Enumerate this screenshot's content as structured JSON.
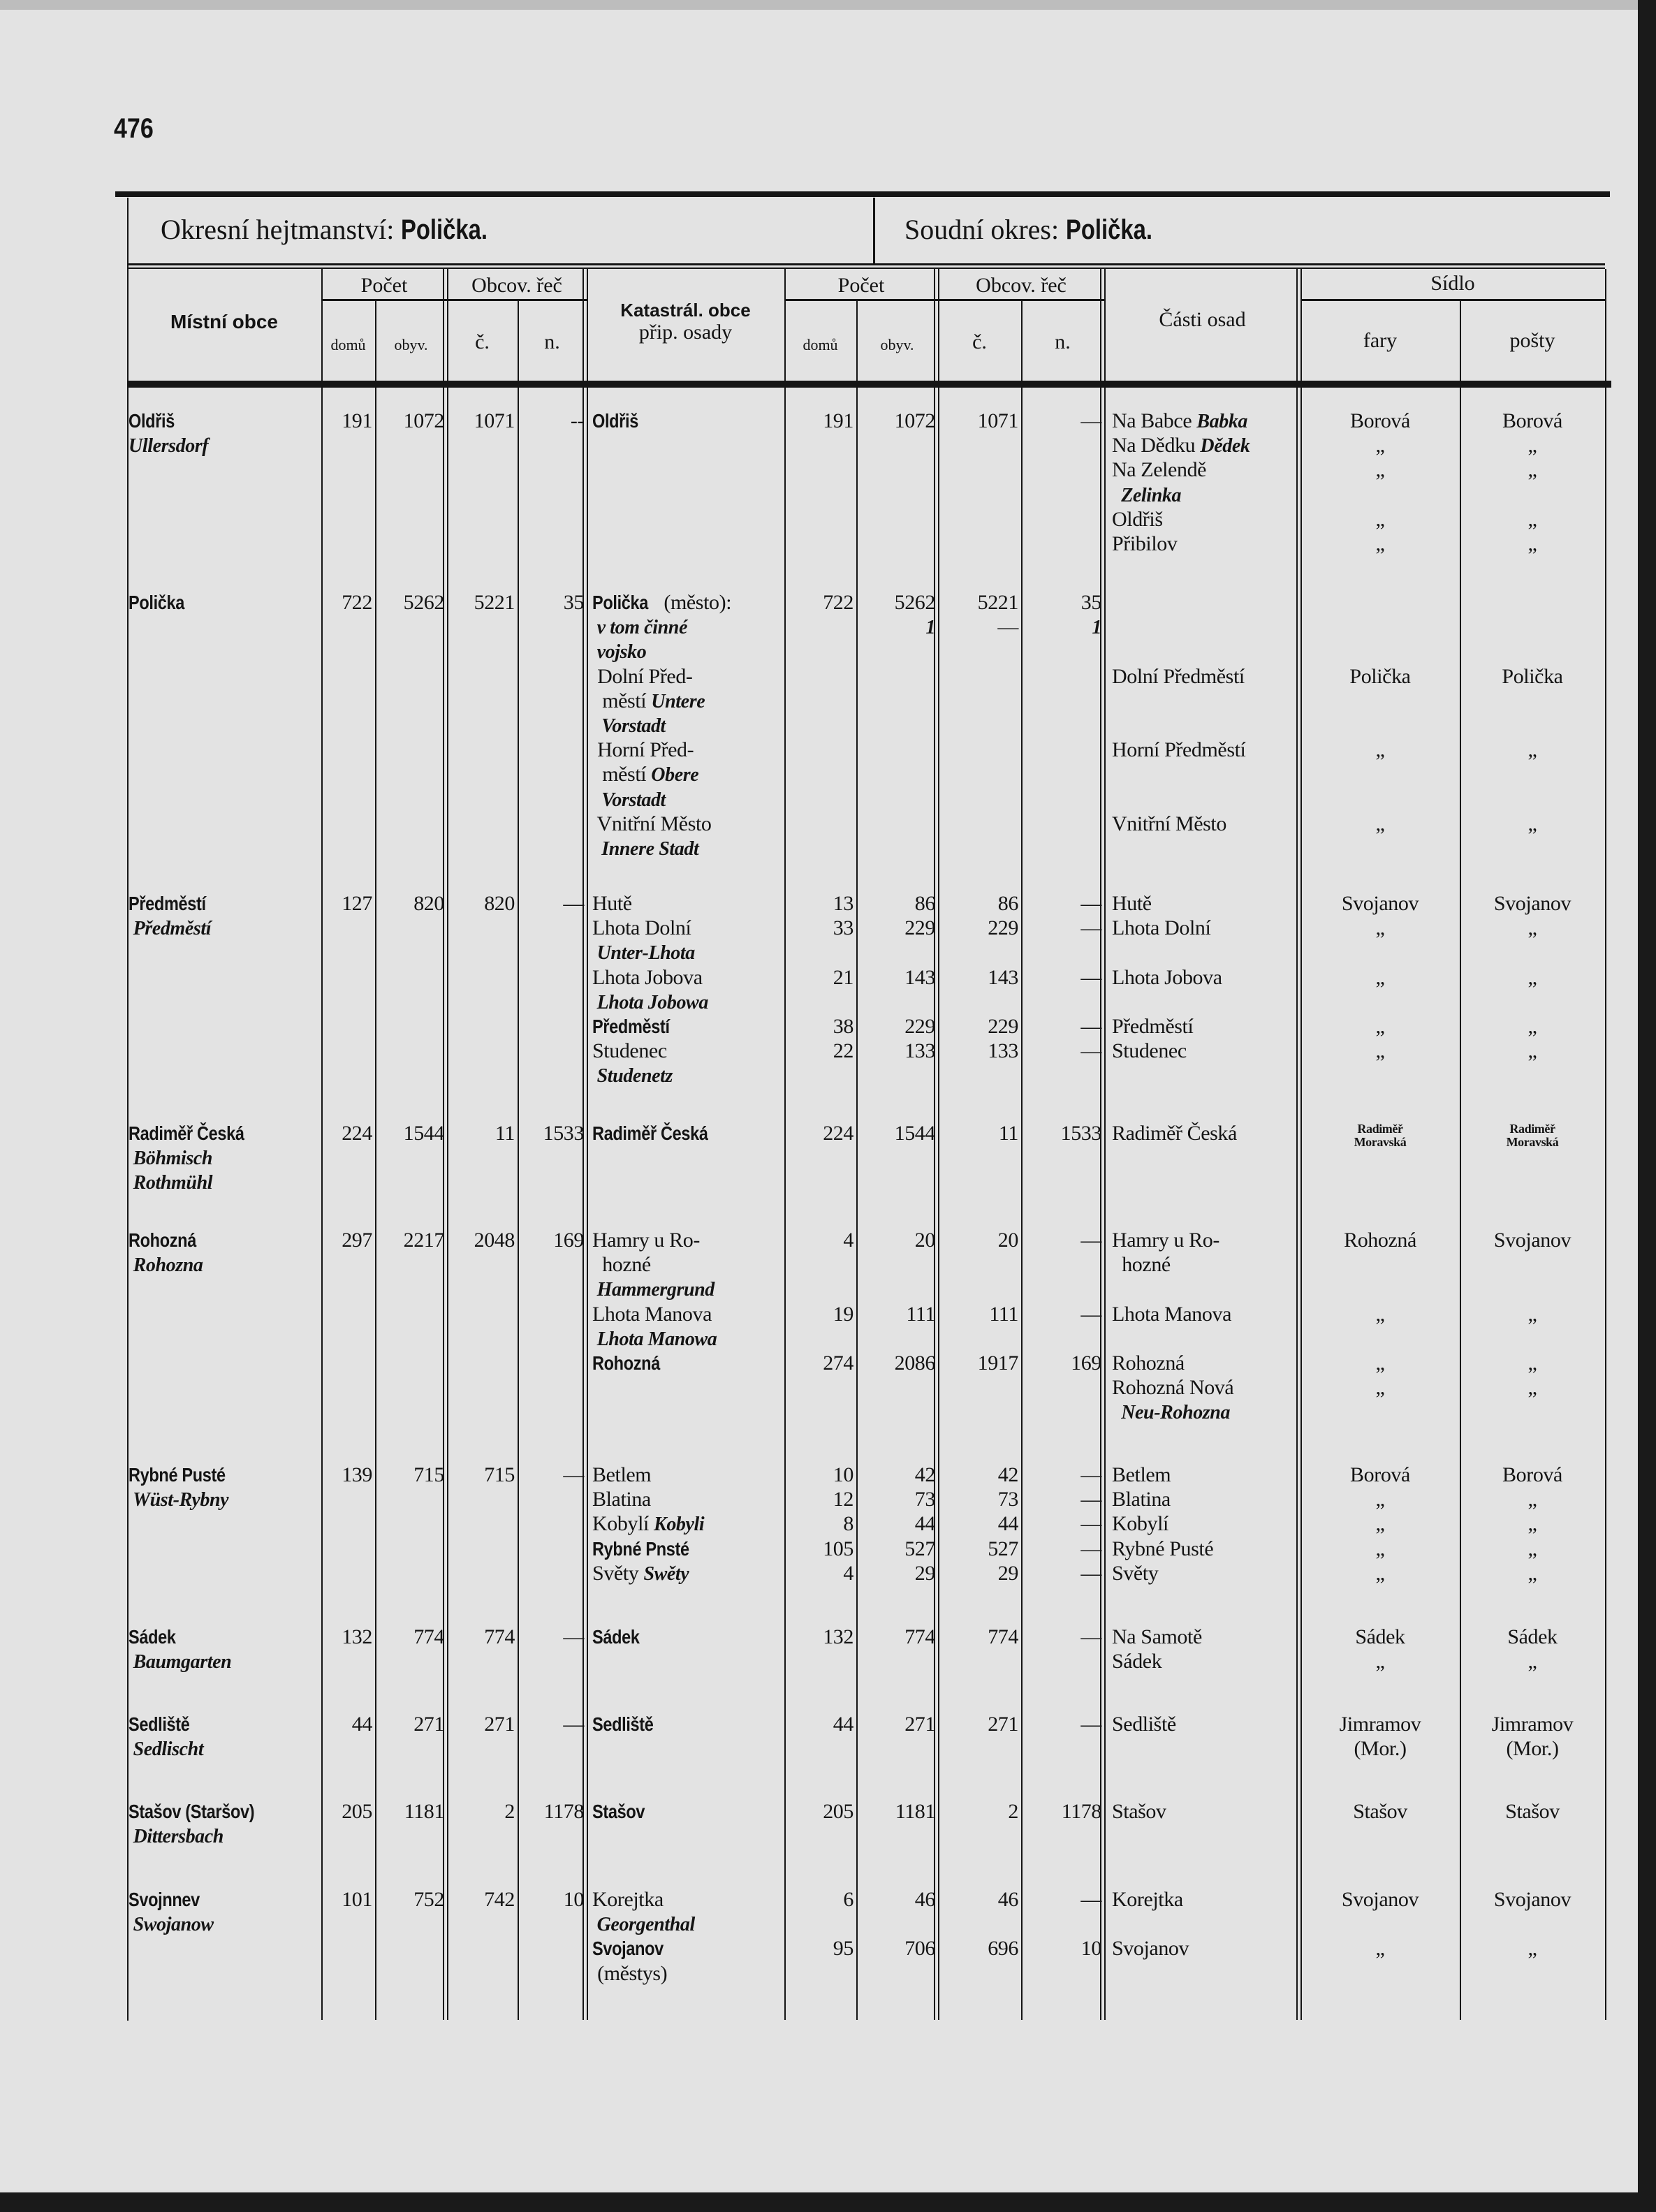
{
  "page_number": "476",
  "header": {
    "district_label": "Okresní hejtmanství: ",
    "district_name": "Polička.",
    "court_label": "Soudní okres: ",
    "court_name": "Polička."
  },
  "columns": {
    "mistni_obce": "Místní obce",
    "pocet": "Počet",
    "obcov_rec": "Obcov. řeč",
    "domu": "domů",
    "obyv": "obyv.",
    "c": "č.",
    "n": "n.",
    "katastr_1": "Katastrál. obce",
    "katastr_2": "přip. osady",
    "pocet_2": "Počet",
    "obcov_rec_2": "Obcov. řeč",
    "domu_2": "domů",
    "obyv_2": "obyv.",
    "c_2": "č.",
    "n_2": "n.",
    "casti_osad": "Části osad",
    "sidlo": "Sídlo",
    "fary": "fary",
    "posty": "pošty"
  },
  "groups": [
    {
      "lines": [
        [
          {
            "bold": "Oldřiš"
          },
          "191",
          "1072",
          "1071",
          "--",
          {
            "bold": "Oldřiš"
          },
          "191",
          "1072",
          "1071",
          "—",
          {
            "text": "Na Babce ",
            "italic": "Babka"
          },
          "Borová",
          "Borová"
        ],
        [
          {
            "italic": "Ullersdorf"
          },
          "",
          "",
          "",
          "",
          "",
          "",
          "",
          "",
          "",
          {
            "text": "Na Dědku ",
            "italic": "Dědek"
          },
          "„",
          "„"
        ],
        [
          "",
          "",
          "",
          "",
          "",
          "",
          "",
          "",
          "",
          "",
          "Na Zelendě",
          "„",
          "„"
        ],
        [
          "",
          "",
          "",
          "",
          "",
          "",
          "",
          "",
          "",
          "",
          {
            "italic": "  Zelinka"
          },
          "",
          ""
        ],
        [
          "",
          "",
          "",
          "",
          "",
          "",
          "",
          "",
          "",
          "",
          "Oldřiš",
          "„",
          "„"
        ],
        [
          "",
          "",
          "",
          "",
          "",
          "",
          "",
          "",
          "",
          "",
          "Přibilov",
          "„",
          "„"
        ]
      ]
    },
    {
      "lines": [
        [
          {
            "bold": "Polička"
          },
          "722",
          "5262",
          "5221",
          "35",
          {
            "bold": "Polička",
            "text": " (město):"
          },
          "722",
          "5262",
          "5221",
          "35",
          "",
          "",
          ""
        ],
        [
          "",
          "",
          "",
          "",
          "",
          {
            "italic": " v tom činné"
          },
          "",
          {
            "italic": "1"
          },
          "—",
          {
            "italic": "1"
          },
          "",
          "",
          ""
        ],
        [
          "",
          "",
          "",
          "",
          "",
          {
            "italic": " vojsko"
          },
          "",
          "",
          "",
          "",
          "",
          "",
          ""
        ],
        [
          "",
          "",
          "",
          "",
          "",
          " Dolní Před-",
          "",
          "",
          "",
          "",
          "Dolní Předměstí",
          "Polička",
          "Polička"
        ],
        [
          "",
          "",
          "",
          "",
          "",
          {
            "text": "  městí ",
            "italic": "Untere"
          },
          "",
          "",
          "",
          "",
          "",
          "",
          ""
        ],
        [
          "",
          "",
          "",
          "",
          "",
          {
            "italic": "  Vorstadt"
          },
          "",
          "",
          "",
          "",
          "",
          "",
          ""
        ],
        [
          "",
          "",
          "",
          "",
          "",
          " Horní Před-",
          "",
          "",
          "",
          "",
          "Horní Předměstí",
          "„",
          "„"
        ],
        [
          "",
          "",
          "",
          "",
          "",
          {
            "text": "  městí ",
            "italic": "Obere"
          },
          "",
          "",
          "",
          "",
          "",
          "",
          ""
        ],
        [
          "",
          "",
          "",
          "",
          "",
          {
            "italic": "  Vorstadt"
          },
          "",
          "",
          "",
          "",
          "",
          "",
          ""
        ],
        [
          "",
          "",
          "",
          "",
          "",
          " Vnitřní Město",
          "",
          "",
          "",
          "",
          "Vnitřní Město",
          "„",
          "„"
        ],
        [
          "",
          "",
          "",
          "",
          "",
          {
            "italic": "  Innere Stadt"
          },
          "",
          "",
          "",
          "",
          "",
          "",
          ""
        ]
      ]
    },
    {
      "lines": [
        [
          {
            "bold": "Předměstí"
          },
          "127",
          "820",
          "820",
          "—",
          "Hutě",
          "13",
          "86",
          "86",
          "—",
          "Hutě",
          "Svojanov",
          "Svojanov"
        ],
        [
          {
            "italic": " Předměstí"
          },
          "",
          "",
          "",
          "",
          "Lhota Dolní",
          "33",
          "229",
          "229",
          "—",
          "Lhota Dolní",
          "„",
          "„"
        ],
        [
          "",
          "",
          "",
          "",
          "",
          {
            "italic": " Unter-Lhota"
          },
          "",
          "",
          "",
          "",
          "",
          "",
          ""
        ],
        [
          "",
          "",
          "",
          "",
          "",
          "Lhota Jobova",
          "21",
          "143",
          "143",
          "—",
          "Lhota Jobova",
          "„",
          "„"
        ],
        [
          "",
          "",
          "",
          "",
          "",
          {
            "italic": " Lhota Jobowa"
          },
          "",
          "",
          "",
          "",
          "",
          "",
          ""
        ],
        [
          "",
          "",
          "",
          "",
          "",
          {
            "bold": "Předměstí"
          },
          "38",
          "229",
          "229",
          "—",
          "Předměstí",
          "„",
          "„"
        ],
        [
          "",
          "",
          "",
          "",
          "",
          "Studenec",
          "22",
          "133",
          "133",
          "—",
          "Studenec",
          "„",
          "„"
        ],
        [
          "",
          "",
          "",
          "",
          "",
          {
            "italic": " Studenetz"
          },
          "",
          "",
          "",
          "",
          "",
          "",
          ""
        ]
      ]
    },
    {
      "lines": [
        [
          {
            "bold": "Radiměř Česká"
          },
          "224",
          "1544",
          "11",
          "1533",
          {
            "bold": "Radiměř Česká"
          },
          "224",
          "1544",
          "11",
          "1533",
          "Radiměř Česká",
          {
            "small": "Radiměř\nMoravská"
          },
          {
            "small": "Radiměř\nMoravská"
          }
        ],
        [
          {
            "italic": " Böhmisch"
          },
          "",
          "",
          "",
          "",
          "",
          "",
          "",
          "",
          "",
          "",
          "",
          ""
        ],
        [
          {
            "italic": " Rothmühl"
          },
          "",
          "",
          "",
          "",
          "",
          "",
          "",
          "",
          "",
          "",
          "",
          ""
        ]
      ]
    },
    {
      "lines": [
        [
          {
            "bold": "Rohozná"
          },
          "297",
          "2217",
          "2048",
          "169",
          "Hamry u Ro-",
          "4",
          "20",
          "20",
          "—",
          "Hamry u Ro-",
          "Rohozná",
          "Svojanov"
        ],
        [
          {
            "italic": " Rohozna"
          },
          "",
          "",
          "",
          "",
          "  hozné",
          "",
          "",
          "",
          "",
          "  hozné",
          "",
          ""
        ],
        [
          "",
          "",
          "",
          "",
          "",
          {
            "italic": " Hammergrund"
          },
          "",
          "",
          "",
          "",
          "",
          "",
          ""
        ],
        [
          "",
          "",
          "",
          "",
          "",
          "Lhota Manova",
          "19",
          "111",
          "111",
          "—",
          "Lhota Manova",
          "„",
          "„"
        ],
        [
          "",
          "",
          "",
          "",
          "",
          {
            "italic": " Lhota Manowa"
          },
          "",
          "",
          "",
          "",
          "",
          "",
          ""
        ],
        [
          "",
          "",
          "",
          "",
          "",
          {
            "bold": "Rohozná"
          },
          "274",
          "2086",
          "1917",
          "169",
          "Rohozná",
          "„",
          "„"
        ],
        [
          "",
          "",
          "",
          "",
          "",
          "",
          "",
          "",
          "",
          "",
          "Rohozná Nová",
          "„",
          "„"
        ],
        [
          "",
          "",
          "",
          "",
          "",
          "",
          "",
          "",
          "",
          "",
          {
            "italic": "  Neu-Rohozna"
          },
          "",
          ""
        ]
      ]
    },
    {
      "lines": [
        [
          {
            "bold": "Rybné Pusté"
          },
          "139",
          "715",
          "715",
          "—",
          "Betlem",
          "10",
          "42",
          "42",
          "—",
          "Betlem",
          "Borová",
          "Borová"
        ],
        [
          {
            "italic": " Wüst-Rybny"
          },
          "",
          "",
          "",
          "",
          "Blatina",
          "12",
          "73",
          "73",
          "—",
          "Blatina",
          "„",
          "„"
        ],
        [
          "",
          "",
          "",
          "",
          "",
          {
            "text": "Kobylí ",
            "italic": "Kobyli"
          },
          "8",
          "44",
          "44",
          "—",
          "Kobylí",
          "„",
          "„"
        ],
        [
          "",
          "",
          "",
          "",
          "",
          {
            "bold": "Rybné Pnsté"
          },
          "105",
          "527",
          "527",
          "—",
          "Rybné Pusté",
          "„",
          "„"
        ],
        [
          "",
          "",
          "",
          "",
          "",
          {
            "text": "Světy ",
            "italic": "Swěty"
          },
          "4",
          "29",
          "29",
          "—",
          "Světy",
          "„",
          "„"
        ]
      ]
    },
    {
      "lines": [
        [
          {
            "bold": "Sádek"
          },
          "132",
          "774",
          "774",
          "—",
          {
            "bold": "Sádek"
          },
          "132",
          "774",
          "774",
          "—",
          "Na Samotě",
          "Sádek",
          "Sádek"
        ],
        [
          {
            "italic": " Baumgarten"
          },
          "",
          "",
          "",
          "",
          "",
          "",
          "",
          "",
          "",
          "Sádek",
          "„",
          "„"
        ]
      ]
    },
    {
      "lines": [
        [
          {
            "bold": "Sedliště"
          },
          "44",
          "271",
          "271",
          "—",
          {
            "bold": "Sedliště"
          },
          "44",
          "271",
          "271",
          "—",
          "Sedliště",
          "Jimramov",
          "Jimramov"
        ],
        [
          {
            "italic": " Sedlischt"
          },
          "",
          "",
          "",
          "",
          "",
          "",
          "",
          "",
          "",
          "",
          "(Mor.)",
          "(Mor.)"
        ]
      ]
    },
    {
      "lines": [
        [
          {
            "bold": "Stašov (Staršov)"
          },
          "205",
          "1181",
          "2",
          "1178",
          {
            "bold": "Stašov"
          },
          "205",
          "1181",
          "2",
          "1178",
          "Stašov",
          "Stašov",
          "Stašov"
        ],
        [
          {
            "italic": " Dittersbach"
          },
          "",
          "",
          "",
          "",
          "",
          "",
          "",
          "",
          "",
          "",
          "",
          ""
        ]
      ]
    },
    {
      "lines": [
        [
          {
            "bold": "Svojnnev"
          },
          "101",
          "752",
          "742",
          "10",
          "Korejtka",
          "6",
          "46",
          "46",
          "—",
          "Korejtka",
          "Svojanov",
          "Svojanov"
        ],
        [
          {
            "italic": " Swojanow"
          },
          "",
          "",
          "",
          "",
          {
            "italic": " Georgenthal"
          },
          "",
          "",
          "",
          "",
          "",
          "",
          ""
        ],
        [
          "",
          "",
          "",
          "",
          "",
          {
            "bold": "Svojanov"
          },
          "95",
          "706",
          "696",
          "10",
          "Svojanov",
          "„",
          "„"
        ],
        [
          "",
          "",
          "",
          "",
          "",
          " (městys)",
          "",
          "",
          "",
          "",
          "",
          "",
          ""
        ]
      ]
    }
  ]
}
